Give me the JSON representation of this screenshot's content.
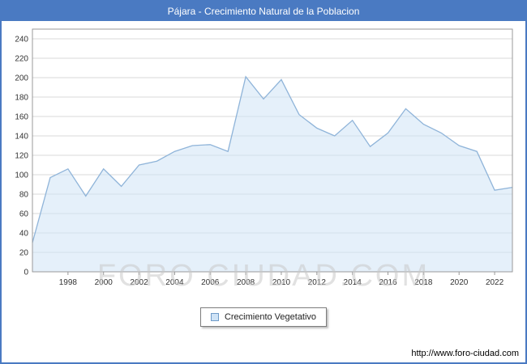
{
  "header": {
    "title": "Pájara - Crecimiento Natural de la Poblacion",
    "bg_color": "#4a7ac2",
    "text_color": "#ffffff"
  },
  "watermark": "FORO CIUDAD.COM",
  "legend": {
    "label": "Crecimiento Vegetativo",
    "swatch_fill": "#cfe3f6",
    "swatch_border": "#6f9bc8"
  },
  "footer": {
    "url": "http://www.foro-ciudad.com"
  },
  "chart_data": {
    "type": "area",
    "title": "Pájara - Crecimiento Natural de la Poblacion",
    "x": [
      1996,
      1997,
      1998,
      1999,
      2000,
      2001,
      2002,
      2003,
      2004,
      2005,
      2006,
      2007,
      2008,
      2009,
      2010,
      2011,
      2012,
      2013,
      2014,
      2015,
      2016,
      2017,
      2018,
      2019,
      2020,
      2021,
      2022,
      2023
    ],
    "values": [
      30,
      97,
      106,
      78,
      106,
      88,
      110,
      114,
      124,
      130,
      131,
      124,
      201,
      178,
      198,
      162,
      148,
      140,
      156,
      129,
      143,
      168,
      152,
      143,
      130,
      124,
      84,
      87
    ],
    "series_name": "Crecimiento Vegetativo",
    "xlabel": "",
    "ylabel": "",
    "ylim": [
      0,
      250
    ],
    "ytick_step": 20,
    "ytick_max": 240,
    "xticks": [
      1998,
      2000,
      2002,
      2004,
      2006,
      2008,
      2010,
      2012,
      2014,
      2016,
      2018,
      2020,
      2022
    ],
    "grid": true,
    "legend_position": "bottom",
    "line_color": "#8fb4d9",
    "fill_color": "#cfe3f6",
    "fill_opacity": 0.55,
    "grid_color": "#d9d9d9",
    "axis_color": "#999999",
    "tick_label_color": "#333333"
  }
}
